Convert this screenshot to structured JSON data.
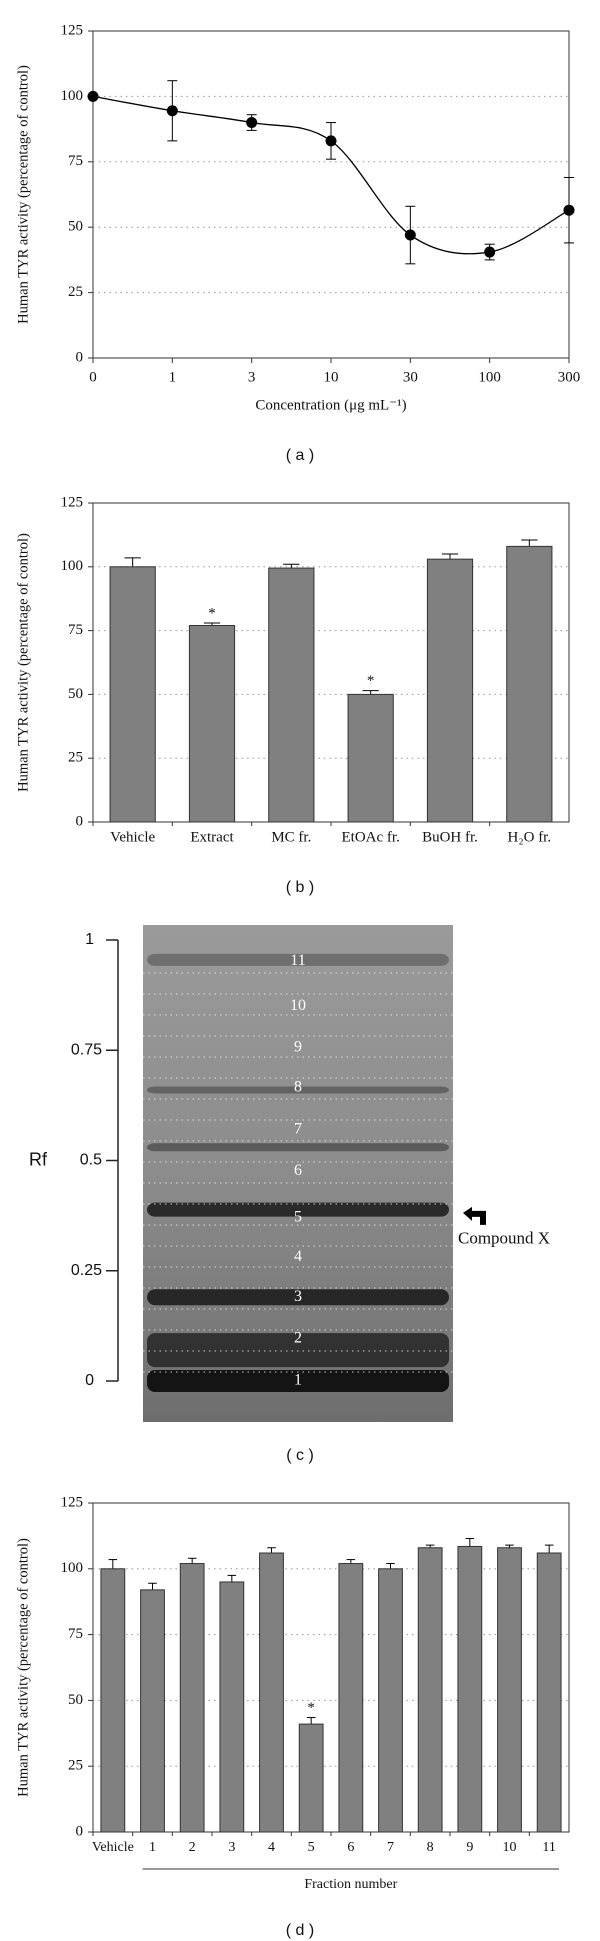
{
  "chart_data": [
    {
      "type": "line",
      "caption": "( a )",
      "xlabel": "Concentration (μg mL⁻¹)",
      "ylabel": "Human TYR activity (percentage of control)",
      "categories": [
        "0",
        "1",
        "3",
        "10",
        "30",
        "100",
        "300"
      ],
      "values": [
        100,
        94.5,
        90,
        83,
        47,
        40.5,
        56.5
      ],
      "errors": [
        0,
        11.5,
        3,
        7,
        11,
        3,
        12.5
      ],
      "color": "#000000",
      "smooth": true,
      "ylim": [
        0,
        125
      ],
      "yticks": [
        0,
        25,
        50,
        75,
        100,
        125
      ],
      "grid": true
    },
    {
      "type": "bar",
      "caption": "( b )",
      "ylabel": "Human TYR activity (percentage of control)",
      "categories": [
        "Vehicle",
        "Extract",
        "MC fr.",
        "EtOAc fr.",
        "BuOH fr.",
        "H₂O fr."
      ],
      "values": [
        100,
        77,
        99.5,
        50,
        103,
        108
      ],
      "errors": [
        3.5,
        1,
        1.5,
        1.5,
        2,
        2.5
      ],
      "markers": [
        null,
        "*",
        null,
        "*",
        null,
        null
      ],
      "color": "#808080",
      "ylim": [
        0,
        125
      ],
      "yticks": [
        0,
        25,
        50,
        75,
        100,
        125
      ],
      "grid": true
    },
    {
      "type": "image",
      "caption": "( c )",
      "ylabel": "Rf",
      "ylim": [
        0,
        1
      ],
      "yticks": [
        0,
        0.25,
        0.5,
        0.75,
        1
      ],
      "bands": [
        {
          "label": "1",
          "rf": 0.0
        },
        {
          "label": "2",
          "rf": 0.096
        },
        {
          "label": "3",
          "rf": 0.19
        },
        {
          "label": "4",
          "rf": 0.28
        },
        {
          "label": "5",
          "rf": 0.37
        },
        {
          "label": "6",
          "rf": 0.475
        },
        {
          "label": "7",
          "rf": 0.57
        },
        {
          "label": "8",
          "rf": 0.665
        },
        {
          "label": "9",
          "rf": 0.755
        },
        {
          "label": "10",
          "rf": 0.85
        },
        {
          "label": "11",
          "rf": 0.952
        }
      ],
      "annotation": "Compound X"
    },
    {
      "type": "bar",
      "caption": "( d )",
      "xlabel": "Fraction number",
      "ylabel": "Human TYR activity (percentage of control)",
      "categories": [
        "Vehicle",
        "1",
        "2",
        "3",
        "4",
        "5",
        "6",
        "7",
        "8",
        "9",
        "10",
        "11"
      ],
      "values": [
        100,
        92,
        102,
        95,
        106,
        41,
        102,
        100,
        108,
        108.5,
        108,
        106
      ],
      "errors": [
        3.5,
        2.5,
        2,
        2.5,
        2,
        2.5,
        1.5,
        2,
        1,
        3,
        1,
        3
      ],
      "markers": [
        null,
        null,
        null,
        null,
        null,
        "*",
        null,
        null,
        null,
        null,
        null,
        null
      ],
      "color": "#808080",
      "ylim": [
        0,
        125
      ],
      "yticks": [
        0,
        25,
        50,
        75,
        100,
        125
      ],
      "grid": true
    }
  ]
}
